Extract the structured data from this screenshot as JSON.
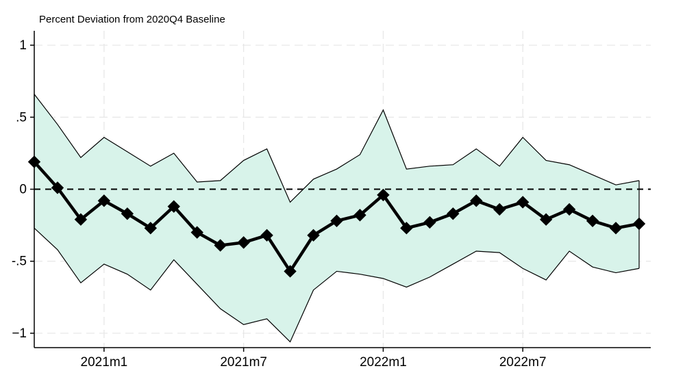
{
  "chart_data": {
    "type": "line",
    "ylabel": "Percent Deviation from 2020Q4 Baseline",
    "xlim": [
      -3,
      23.5
    ],
    "ylim": [
      -1.1,
      1.1
    ],
    "x_ticks": [
      {
        "value": 0,
        "label": "2021m1"
      },
      {
        "value": 6,
        "label": "2021m7"
      },
      {
        "value": 12,
        "label": "2022m1"
      },
      {
        "value": 18,
        "label": "2022m7"
      }
    ],
    "y_ticks": [
      {
        "value": 1,
        "label": "1"
      },
      {
        "value": 0.5,
        "label": ".5"
      },
      {
        "value": 0,
        "label": "0"
      },
      {
        "value": -0.5,
        "label": "-.5"
      },
      {
        "value": -1,
        "label": "−1"
      }
    ],
    "grid": true,
    "reference_line": {
      "y": 0,
      "style": "dashed"
    },
    "x": [
      -3,
      -2,
      -1,
      0,
      1,
      2,
      3,
      4,
      5,
      6,
      7,
      8,
      9,
      10,
      11,
      12,
      13,
      14,
      15,
      16,
      17,
      18,
      19,
      20,
      21,
      22,
      23
    ],
    "series": [
      {
        "values": [
          0.19,
          0.01,
          -0.21,
          -0.08,
          -0.17,
          -0.27,
          -0.12,
          -0.3,
          -0.39,
          -0.37,
          -0.32,
          -0.57,
          -0.32,
          -0.22,
          -0.18,
          -0.04,
          -0.27,
          -0.23,
          -0.17,
          -0.08,
          -0.14,
          -0.09,
          -0.21,
          -0.14,
          -0.22,
          -0.27,
          -0.24
        ],
        "color": "#000000",
        "marker": "diamond"
      }
    ],
    "confidence_band": {
      "upper": [
        0.66,
        0.45,
        0.22,
        0.36,
        0.26,
        0.16,
        0.25,
        0.05,
        0.06,
        0.2,
        0.28,
        -0.09,
        0.07,
        0.14,
        0.24,
        0.55,
        0.14,
        0.16,
        0.17,
        0.28,
        0.16,
        0.36,
        0.2,
        0.17,
        0.1,
        0.03,
        0.06
      ],
      "lower": [
        -0.27,
        -0.42,
        -0.65,
        -0.52,
        -0.59,
        -0.7,
        -0.49,
        -0.66,
        -0.83,
        -0.94,
        -0.9,
        -1.06,
        -0.7,
        -0.57,
        -0.59,
        -0.62,
        -0.68,
        -0.61,
        -0.52,
        -0.43,
        -0.44,
        -0.55,
        -0.63,
        -0.43,
        -0.54,
        -0.58,
        -0.55
      ],
      "fill": "#d8f3ea",
      "edge": "#000000"
    }
  }
}
